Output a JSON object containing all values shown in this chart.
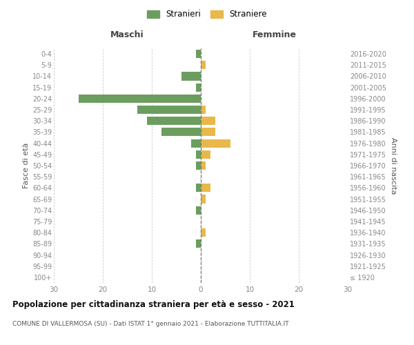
{
  "age_groups": [
    "100+",
    "95-99",
    "90-94",
    "85-89",
    "80-84",
    "75-79",
    "70-74",
    "65-69",
    "60-64",
    "55-59",
    "50-54",
    "45-49",
    "40-44",
    "35-39",
    "30-34",
    "25-29",
    "20-24",
    "15-19",
    "10-14",
    "5-9",
    "0-4"
  ],
  "birth_years": [
    "≤ 1920",
    "1921-1925",
    "1926-1930",
    "1931-1935",
    "1936-1940",
    "1941-1945",
    "1946-1950",
    "1951-1955",
    "1956-1960",
    "1961-1965",
    "1966-1970",
    "1971-1975",
    "1976-1980",
    "1981-1985",
    "1986-1990",
    "1991-1995",
    "1996-2000",
    "2001-2005",
    "2006-2010",
    "2011-2015",
    "2016-2020"
  ],
  "maschi_stranieri": [
    0,
    0,
    0,
    1,
    0,
    0,
    1,
    0,
    1,
    0,
    1,
    1,
    2,
    8,
    11,
    13,
    25,
    1,
    4,
    0,
    1
  ],
  "femmine_straniere": [
    0,
    0,
    0,
    0,
    1,
    0,
    0,
    1,
    2,
    0,
    1,
    2,
    6,
    3,
    3,
    1,
    0,
    0,
    0,
    1,
    0
  ],
  "color_maschi": "#6b9e5e",
  "color_femmine": "#e8b84b",
  "title": "Popolazione per cittadinanza straniera per età e sesso - 2021",
  "subtitle": "COMUNE DI VALLERMOSA (SU) - Dati ISTAT 1° gennaio 2021 - Elaborazione TUTTITALIA.IT",
  "xlabel_left": "Maschi",
  "xlabel_right": "Femmine",
  "ylabel_left": "Fasce di età",
  "ylabel_right": "Anni di nascita",
  "xlim": 30,
  "legend_stranieri": "Stranieri",
  "legend_straniere": "Straniere",
  "background_color": "#ffffff",
  "grid_color": "#cccccc",
  "tick_color": "#888888",
  "center_line_color": "#777777",
  "bar_height": 0.75
}
